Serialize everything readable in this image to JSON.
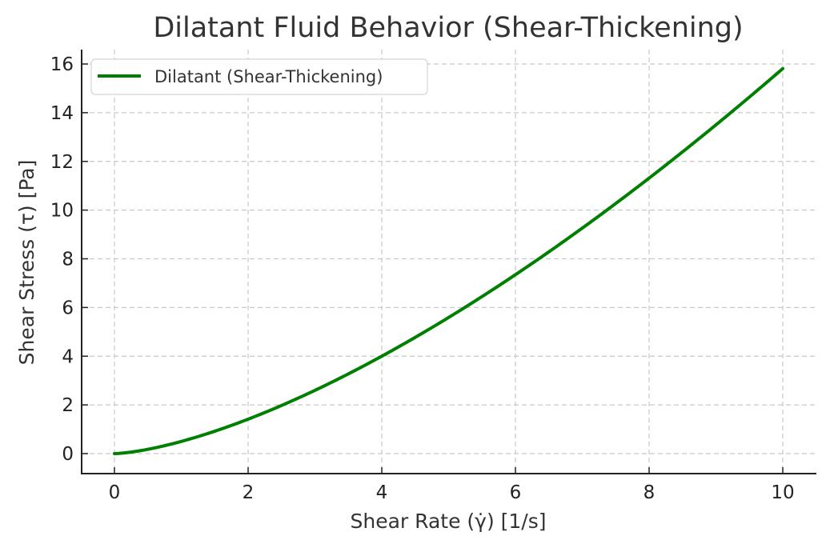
{
  "chart_data": {
    "type": "line",
    "title": "Dilatant Fluid Behavior (Shear-Thickening)",
    "xlabel": "Shear Rate (γ̇) [1/s]",
    "ylabel": "Shear Stress (τ) [Pa]",
    "xlim": [
      -0.5,
      10.5
    ],
    "ylim": [
      -0.8,
      16.6
    ],
    "xticks": [
      0,
      2,
      4,
      6,
      8,
      10
    ],
    "yticks": [
      0,
      2,
      4,
      6,
      8,
      10,
      12,
      14,
      16
    ],
    "grid": true,
    "legend_position": "upper left",
    "series": [
      {
        "name": "Dilatant (Shear-Thickening)",
        "color": "#008000",
        "x": [
          0,
          0.5,
          1,
          1.5,
          2,
          2.5,
          3,
          3.5,
          4,
          4.5,
          5,
          5.5,
          6,
          6.5,
          7,
          7.5,
          8,
          8.5,
          9,
          9.5,
          10
        ],
        "y": [
          0,
          0.18,
          0.5,
          0.92,
          1.41,
          1.98,
          2.6,
          3.27,
          4.0,
          4.77,
          5.59,
          6.45,
          7.35,
          8.29,
          9.26,
          10.27,
          11.31,
          12.39,
          13.5,
          14.64,
          15.81
        ]
      }
    ]
  }
}
